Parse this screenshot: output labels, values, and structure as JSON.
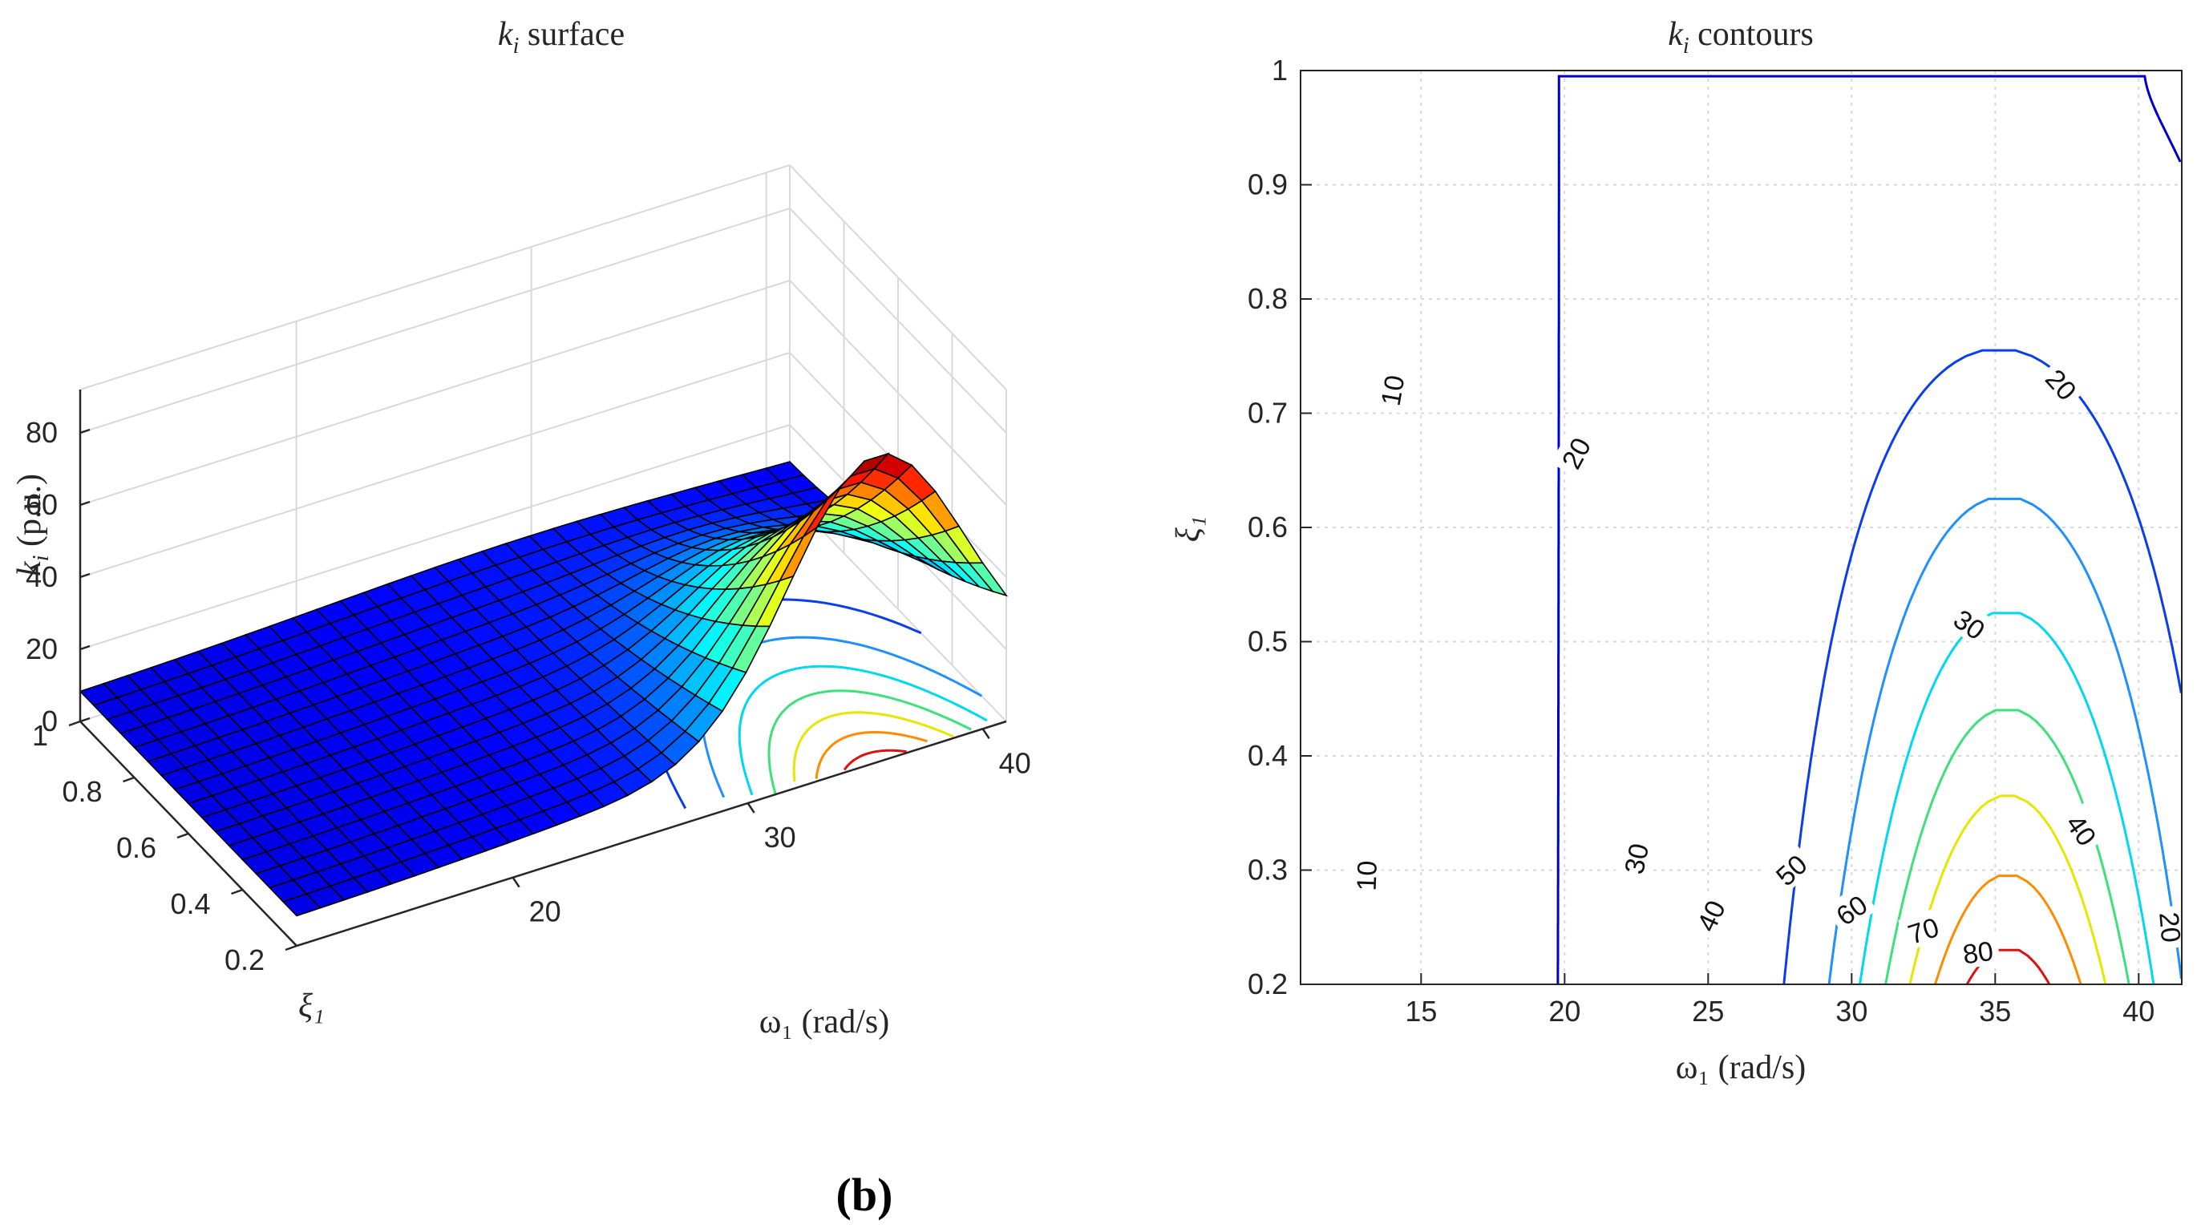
{
  "caption": "(b)",
  "colors": {
    "axis": "#262626",
    "grid": "#d9d9d9"
  },
  "chart_data": [
    {
      "type": "surface",
      "title": "k_i surface",
      "title_main": "k",
      "title_sub": "i",
      "title_rest": " surface",
      "xlabel": "ω₁ (rad/s)",
      "ylabel": "ξ₁",
      "zlabel": "k_i (p.u.)",
      "zlabel_main": "k",
      "zlabel_sub": "i",
      "zlabel_rest": " (p.u.)",
      "xlim": [
        10.8,
        41
      ],
      "ylim": [
        0.2,
        1
      ],
      "zlim": [
        0,
        90
      ],
      "xticks": [
        20,
        30,
        40
      ],
      "yticks": [
        1,
        0.8,
        0.6,
        0.4,
        0.2
      ],
      "zticks": [
        0,
        20,
        40,
        60,
        80
      ],
      "ytick_labels": [
        "1",
        "0.8",
        "0.6",
        "0.4",
        "0.2"
      ],
      "colormap": "jet",
      "peak": {
        "omega": 35.5,
        "xi": 0.2,
        "k_i": 82
      },
      "projected_contour_levels": [
        10,
        20,
        30,
        40,
        50,
        60,
        70,
        80
      ]
    },
    {
      "type": "contour",
      "title": "k_i contours",
      "title_main": "k",
      "title_sub": "i",
      "title_rest": " contours",
      "xlabel": "ω₁ (rad/s)",
      "ylabel": "ξ₁",
      "xlim": [
        10.8,
        41.5
      ],
      "ylim": [
        0.2,
        1
      ],
      "xticks": [
        15,
        20,
        25,
        30,
        35,
        40
      ],
      "yticks": [
        0.2,
        0.3,
        0.4,
        0.5,
        0.6,
        0.7,
        0.8,
        0.9,
        1
      ],
      "ytick_labels": [
        "0.2",
        "0.3",
        "0.4",
        "0.5",
        "0.6",
        "0.7",
        "0.8",
        "0.9",
        "1"
      ],
      "grid": true,
      "levels": [
        10,
        20,
        30,
        40,
        50,
        60,
        70,
        80
      ],
      "level_colors": [
        "#0000cc",
        "#0a3df0",
        "#1e90ff",
        "#00d8f0",
        "#3ee07a",
        "#e6e600",
        "#ff8c00",
        "#e01010"
      ],
      "level_labels": [
        {
          "text": "10",
          "omega": 14.0,
          "xi": 0.72,
          "angle": -80
        },
        {
          "text": "10",
          "omega": 13.1,
          "xi": 0.295,
          "angle": -88
        },
        {
          "text": "20",
          "omega": 20.4,
          "xi": 0.665,
          "angle": -62
        },
        {
          "text": "20",
          "omega": 37.3,
          "xi": 0.725,
          "angle": 48
        },
        {
          "text": "20",
          "omega": 41.1,
          "xi": 0.25,
          "angle": 85
        },
        {
          "text": "30",
          "omega": 22.5,
          "xi": 0.31,
          "angle": -78
        },
        {
          "text": "30",
          "omega": 34.1,
          "xi": 0.515,
          "angle": 35
        },
        {
          "text": "40",
          "omega": 25.1,
          "xi": 0.26,
          "angle": -65
        },
        {
          "text": "40",
          "omega": 38.0,
          "xi": 0.335,
          "angle": 55
        },
        {
          "text": "50",
          "omega": 27.9,
          "xi": 0.3,
          "angle": -42
        },
        {
          "text": "60",
          "omega": 30.0,
          "xi": 0.265,
          "angle": -35
        },
        {
          "text": "70",
          "omega": 32.5,
          "xi": 0.247,
          "angle": -18
        },
        {
          "text": "80",
          "omega": 34.4,
          "xi": 0.228,
          "angle": -8
        }
      ]
    }
  ]
}
